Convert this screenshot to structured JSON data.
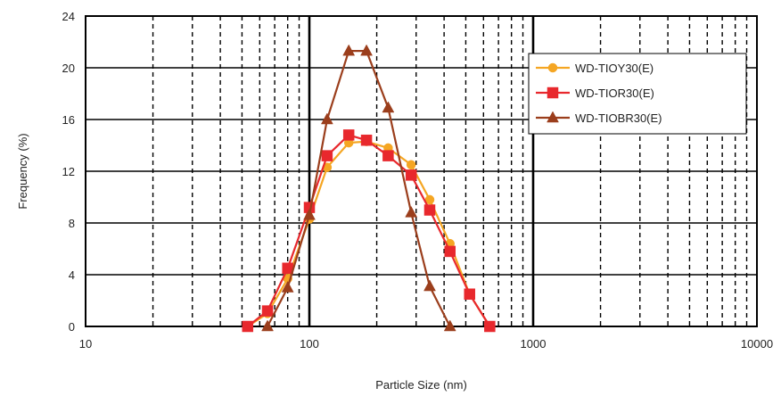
{
  "chart_data": {
    "type": "line",
    "xlabel": "Particle Size (nm)",
    "ylabel": "Frequency  (%)",
    "xscale": "log",
    "xlim": [
      10,
      10000
    ],
    "ylim": [
      0,
      24
    ],
    "xticks": [
      10,
      100,
      1000,
      10000
    ],
    "xtick_labels": [
      "10",
      "100",
      "1000",
      "10000"
    ],
    "yticks": [
      0,
      4,
      8,
      12,
      16,
      20,
      24
    ],
    "ytick_labels": [
      "0",
      "4",
      "8",
      "12",
      "16",
      "20",
      "24"
    ],
    "grid": true,
    "legend_position": "top-right",
    "series": [
      {
        "name": "WD-TIOY30(E)",
        "color": "#f5a623",
        "marker": "circle",
        "points": [
          [
            53,
            0
          ],
          [
            65,
            1.0
          ],
          [
            80,
            3.7
          ],
          [
            100,
            8.3
          ],
          [
            120,
            12.3
          ],
          [
            150,
            14.2
          ],
          [
            180,
            14.3
          ],
          [
            225,
            13.8
          ],
          [
            285,
            12.5
          ],
          [
            345,
            9.8
          ],
          [
            425,
            6.4
          ],
          [
            520,
            2.5
          ],
          [
            640,
            0
          ]
        ]
      },
      {
        "name": "WD-TIOR30(E)",
        "color": "#e8282d",
        "marker": "square",
        "points": [
          [
            53,
            0
          ],
          [
            65,
            1.2
          ],
          [
            80,
            4.5
          ],
          [
            100,
            9.2
          ],
          [
            120,
            13.2
          ],
          [
            150,
            14.8
          ],
          [
            180,
            14.4
          ],
          [
            225,
            13.2
          ],
          [
            285,
            11.7
          ],
          [
            345,
            9.0
          ],
          [
            425,
            5.8
          ],
          [
            520,
            2.5
          ],
          [
            640,
            0
          ]
        ]
      },
      {
        "name": "WD-TIOBR30(E)",
        "color": "#9b3e1c",
        "marker": "triangle",
        "points": [
          [
            65,
            0
          ],
          [
            80,
            3.0
          ],
          [
            100,
            8.6
          ],
          [
            120,
            16.0
          ],
          [
            150,
            21.3
          ],
          [
            180,
            21.3
          ],
          [
            225,
            16.9
          ],
          [
            285,
            8.8
          ],
          [
            345,
            3.1
          ],
          [
            425,
            0
          ]
        ]
      }
    ]
  }
}
